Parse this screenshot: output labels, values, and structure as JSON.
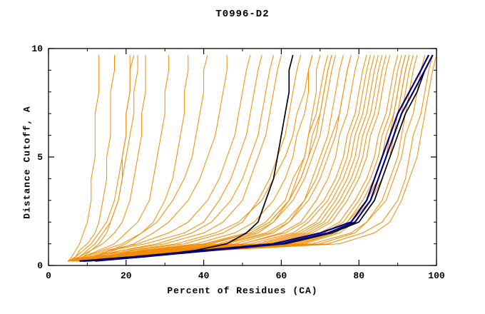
{
  "chart_data": {
    "type": "line",
    "title": "T0996-D2",
    "xlabel": "Percent of Residues (CA)",
    "ylabel": "Distance Cutoff, A",
    "xlim": [
      0,
      100
    ],
    "ylim": [
      0,
      10
    ],
    "x_major_ticks": [
      0,
      20,
      40,
      60,
      80,
      100
    ],
    "x_minor_ticks": [
      10,
      30,
      50,
      70,
      90
    ],
    "y_major_ticks": [
      0,
      5,
      10
    ],
    "y_minor_ticks": [
      1,
      2,
      3,
      4,
      6,
      7,
      8,
      9
    ],
    "grid": false,
    "legend": null,
    "colors": {
      "ensemble": "#f28c00",
      "highlight": "#000000",
      "best": "#000080"
    },
    "y_grid": [
      0.2,
      0.4,
      0.7,
      1.0,
      1.5,
      2,
      3,
      4,
      5,
      6,
      7,
      8,
      9,
      9.7
    ],
    "series": {
      "orange": [
        [
          6,
          18,
          33,
          55,
          65,
          70,
          74,
          77,
          79,
          80,
          82,
          83,
          84,
          85
        ],
        [
          5,
          19,
          35,
          60,
          70,
          75,
          79,
          82,
          84,
          85,
          87,
          88,
          89,
          90
        ],
        [
          7,
          21,
          39,
          65,
          74,
          78,
          82,
          85,
          87,
          88,
          89,
          90,
          91,
          92
        ],
        [
          6,
          22,
          41,
          70,
          79,
          82,
          86,
          88,
          90,
          91,
          92,
          93,
          94,
          95
        ],
        [
          8,
          18,
          31,
          50,
          60,
          65,
          69,
          72,
          74,
          75,
          77,
          78,
          79,
          80
        ],
        [
          5,
          15,
          27,
          45,
          56,
          61,
          66,
          69,
          71,
          73,
          75,
          76,
          77,
          78
        ],
        [
          6,
          19,
          35,
          58,
          68,
          73,
          77,
          80,
          82,
          83,
          85,
          86,
          87,
          88
        ],
        [
          7,
          21,
          37,
          62,
          73,
          77,
          82,
          85,
          87,
          88,
          90,
          91,
          92,
          93
        ],
        [
          5,
          21,
          40,
          68,
          78,
          82,
          87,
          89,
          91,
          92,
          94,
          95,
          96,
          97
        ],
        [
          6,
          17,
          31,
          52,
          63,
          67,
          72,
          75,
          77,
          78,
          80,
          81,
          82,
          83
        ],
        [
          8,
          18,
          30,
          48,
          58,
          62,
          66,
          68,
          70,
          72,
          73,
          74,
          75,
          76
        ],
        [
          6,
          14,
          25,
          40,
          51,
          56,
          61,
          63,
          66,
          67,
          69,
          70,
          71,
          72
        ],
        [
          7,
          14,
          22,
          35,
          45,
          50,
          54,
          57,
          59,
          61,
          62,
          63,
          64,
          65
        ],
        [
          5,
          11,
          19,
          30,
          40,
          45,
          50,
          52,
          54,
          56,
          57,
          58,
          59,
          60
        ],
        [
          6,
          11,
          16,
          25,
          35,
          40,
          44,
          47,
          49,
          51,
          52,
          53,
          54,
          55
        ],
        [
          5,
          6,
          7,
          8,
          9,
          10,
          11,
          11,
          12,
          12,
          12,
          13,
          13,
          13
        ],
        [
          6,
          7,
          8,
          10,
          12,
          13,
          14,
          15,
          15,
          16,
          16,
          16,
          17,
          17
        ],
        [
          7,
          9,
          11,
          13,
          15,
          16,
          18,
          19,
          19,
          20,
          20,
          21,
          21,
          21
        ],
        [
          5,
          8,
          11,
          14,
          17,
          19,
          21,
          22,
          23,
          24,
          24,
          25,
          25,
          25
        ],
        [
          6,
          9,
          13,
          17,
          20,
          23,
          26,
          27,
          28,
          29,
          30,
          30,
          31,
          31
        ],
        [
          8,
          12,
          16,
          20,
          24,
          27,
          30,
          32,
          33,
          34,
          35,
          35,
          36,
          36
        ],
        [
          5,
          9,
          14,
          19,
          24,
          28,
          32,
          35,
          37,
          38,
          39,
          40,
          40,
          41
        ],
        [
          7,
          12,
          17,
          22,
          27,
          31,
          36,
          39,
          41,
          43,
          44,
          45,
          46,
          46
        ],
        [
          6,
          15,
          28,
          45,
          54,
          58,
          62,
          64,
          66,
          67,
          68,
          69,
          69,
          70
        ],
        [
          5,
          13,
          24,
          38,
          48,
          53,
          58,
          61,
          63,
          64,
          66,
          67,
          67,
          68
        ],
        [
          7,
          16,
          29,
          44,
          53,
          58,
          63,
          66,
          68,
          70,
          71,
          72,
          73,
          74
        ],
        [
          6,
          12,
          21,
          33,
          43,
          49,
          55,
          58,
          61,
          63,
          64,
          66,
          67,
          68
        ],
        [
          6,
          23,
          42,
          72,
          81,
          86,
          90,
          92,
          93,
          94,
          96,
          97,
          98,
          99
        ],
        [
          7,
          24,
          44,
          75,
          84,
          88,
          91,
          93,
          95,
          96,
          97,
          98,
          99,
          100
        ],
        [
          5,
          16,
          30,
          50,
          61,
          66,
          71,
          74,
          76,
          77,
          79,
          80,
          81,
          82
        ],
        [
          7,
          20,
          36,
          61,
          71,
          76,
          80,
          83,
          85,
          86,
          88,
          89,
          90,
          91
        ],
        [
          6,
          18,
          34,
          57,
          67,
          72,
          76,
          79,
          81,
          82,
          84,
          85,
          86,
          87
        ],
        [
          8,
          22,
          40,
          66,
          75,
          79,
          83,
          86,
          88,
          89,
          90,
          91,
          92,
          93
        ],
        [
          5,
          17,
          32,
          54,
          64,
          69,
          73,
          76,
          78,
          79,
          81,
          82,
          83,
          84
        ],
        [
          6,
          20,
          37,
          63,
          73,
          77,
          81,
          84,
          86,
          87,
          89,
          90,
          91,
          92
        ],
        [
          7,
          15,
          26,
          42,
          52,
          57,
          62,
          65,
          67,
          68,
          70,
          71,
          72,
          73
        ],
        [
          5,
          10,
          15,
          23,
          31,
          36,
          41,
          44,
          46,
          48,
          49,
          50,
          51,
          52
        ],
        [
          8,
          13,
          19,
          28,
          37,
          42,
          47,
          50,
          52,
          54,
          55,
          56,
          57,
          58
        ],
        [
          6,
          8,
          10,
          12,
          14,
          16,
          18,
          19,
          20,
          21,
          22,
          22,
          23,
          23
        ],
        [
          5,
          7,
          9,
          11,
          13,
          15,
          17,
          18,
          19,
          20,
          20,
          21,
          21,
          22
        ],
        [
          7,
          19,
          34,
          56,
          66,
          71,
          75,
          78,
          80,
          81,
          83,
          84,
          85,
          86
        ],
        [
          6,
          21,
          38,
          64,
          74,
          78,
          83,
          86,
          88,
          89,
          91,
          92,
          93,
          94
        ],
        [
          8,
          16,
          28,
          46,
          57,
          62,
          67,
          70,
          72,
          74,
          75,
          76,
          77,
          78
        ],
        [
          5,
          14,
          25,
          41,
          52,
          57,
          62,
          65,
          67,
          69,
          70,
          71,
          72,
          73
        ]
      ],
      "black": [
        [
          12,
          25,
          38,
          46,
          51,
          54,
          56,
          58,
          59,
          60,
          61,
          62,
          62,
          63
        ],
        [
          10,
          25,
          43,
          61,
          73,
          80,
          84,
          86,
          88,
          90,
          92,
          95,
          97,
          99
        ]
      ],
      "navy": [
        [
          8,
          22,
          40,
          58,
          70,
          78,
          82,
          84,
          86,
          88,
          90,
          93,
          96,
          98
        ],
        [
          9,
          24,
          42,
          60,
          72,
          79,
          83,
          85,
          87,
          89,
          91,
          94,
          97,
          99
        ]
      ]
    }
  }
}
